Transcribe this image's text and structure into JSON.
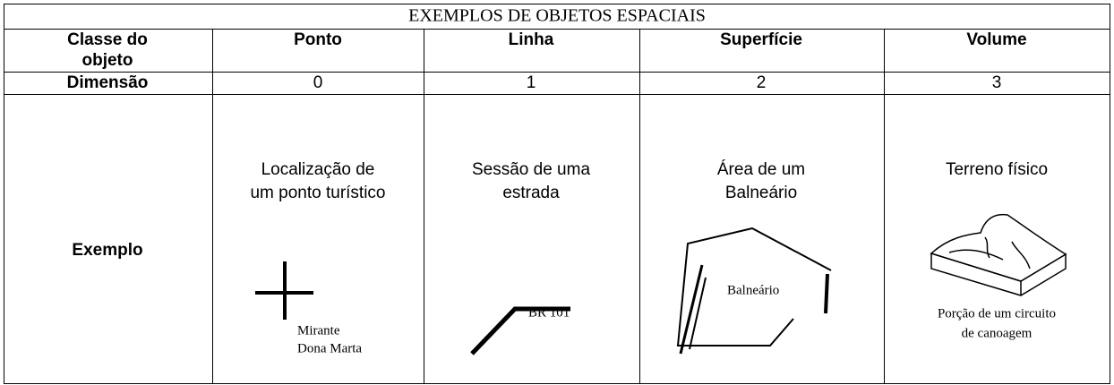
{
  "title": "EXEMPLOS DE OBJETOS ESPACIAIS",
  "header": {
    "label_lines": [
      "Classe do",
      "objeto"
    ],
    "columns": [
      "Ponto",
      "Linha",
      "Superfície",
      "Volume"
    ]
  },
  "dimension": {
    "label": "Dimensão",
    "values": [
      0,
      1,
      2,
      3
    ]
  },
  "example": {
    "label": "Exemplo",
    "cells": [
      {
        "lines": [
          "Localização de",
          "um ponto turístico"
        ],
        "caption": [
          "Mirante",
          "Dona Marta"
        ]
      },
      {
        "lines": [
          "Sessão de uma",
          "estrada"
        ],
        "caption": [
          "BR 101"
        ]
      },
      {
        "lines": [
          "Área de um",
          "Balneário"
        ],
        "caption": [
          "Balneário"
        ]
      },
      {
        "lines": [
          "Terreno físico"
        ],
        "caption": [
          "Porção de um circuito",
          "de canoagem"
        ]
      }
    ]
  }
}
